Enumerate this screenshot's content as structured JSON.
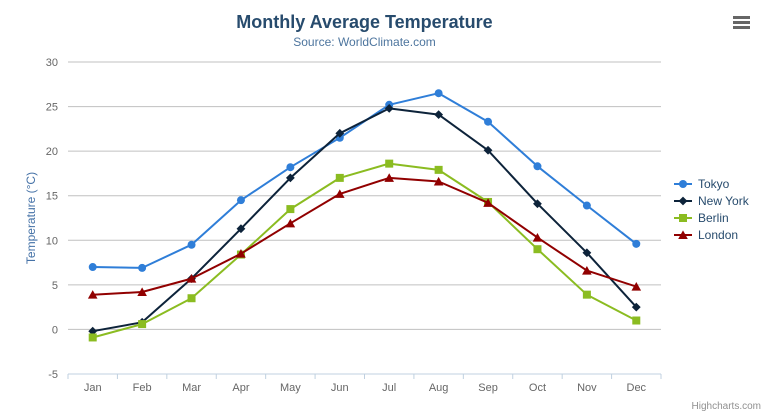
{
  "chart": {
    "credits": "Highcharts.com",
    "context_menu_icon": "hamburger-icon"
  },
  "colors": {
    "title": "#274b6d",
    "subtitle": "#4d759e",
    "axis_title": "#4572a7",
    "tick_label": "#666666",
    "gridline": "#c0c0c0",
    "axis_line": "#c0d0e0",
    "credits": "#909090",
    "menu_icon": "#666666"
  },
  "chart_data": {
    "type": "line",
    "title": "Monthly Average Temperature",
    "subtitle": "Source: WorldClimate.com",
    "xlabel": "",
    "ylabel": "Temperature (°C)",
    "categories": [
      "Jan",
      "Feb",
      "Mar",
      "Apr",
      "May",
      "Jun",
      "Jul",
      "Aug",
      "Sep",
      "Oct",
      "Nov",
      "Dec"
    ],
    "ylim": [
      -5,
      30
    ],
    "ytick_step": 5,
    "grid": true,
    "legend_position": "right",
    "series": [
      {
        "name": "Tokyo",
        "color": "#2f7ed8",
        "marker": "circle",
        "values": [
          7.0,
          6.9,
          9.5,
          14.5,
          18.2,
          21.5,
          25.2,
          26.5,
          23.3,
          18.3,
          13.9,
          9.6
        ]
      },
      {
        "name": "New York",
        "color": "#0d233a",
        "marker": "diamond",
        "values": [
          -0.2,
          0.8,
          5.7,
          11.3,
          17.0,
          22.0,
          24.8,
          24.1,
          20.1,
          14.1,
          8.6,
          2.5
        ]
      },
      {
        "name": "Berlin",
        "color": "#8bbc21",
        "marker": "square",
        "values": [
          -0.9,
          0.6,
          3.5,
          8.4,
          13.5,
          17.0,
          18.6,
          17.9,
          14.3,
          9.0,
          3.9,
          1.0
        ]
      },
      {
        "name": "London",
        "color": "#910000",
        "marker": "triangle",
        "values": [
          3.9,
          4.2,
          5.7,
          8.5,
          11.9,
          15.2,
          17.0,
          16.6,
          14.2,
          10.3,
          6.6,
          4.8
        ]
      }
    ]
  }
}
